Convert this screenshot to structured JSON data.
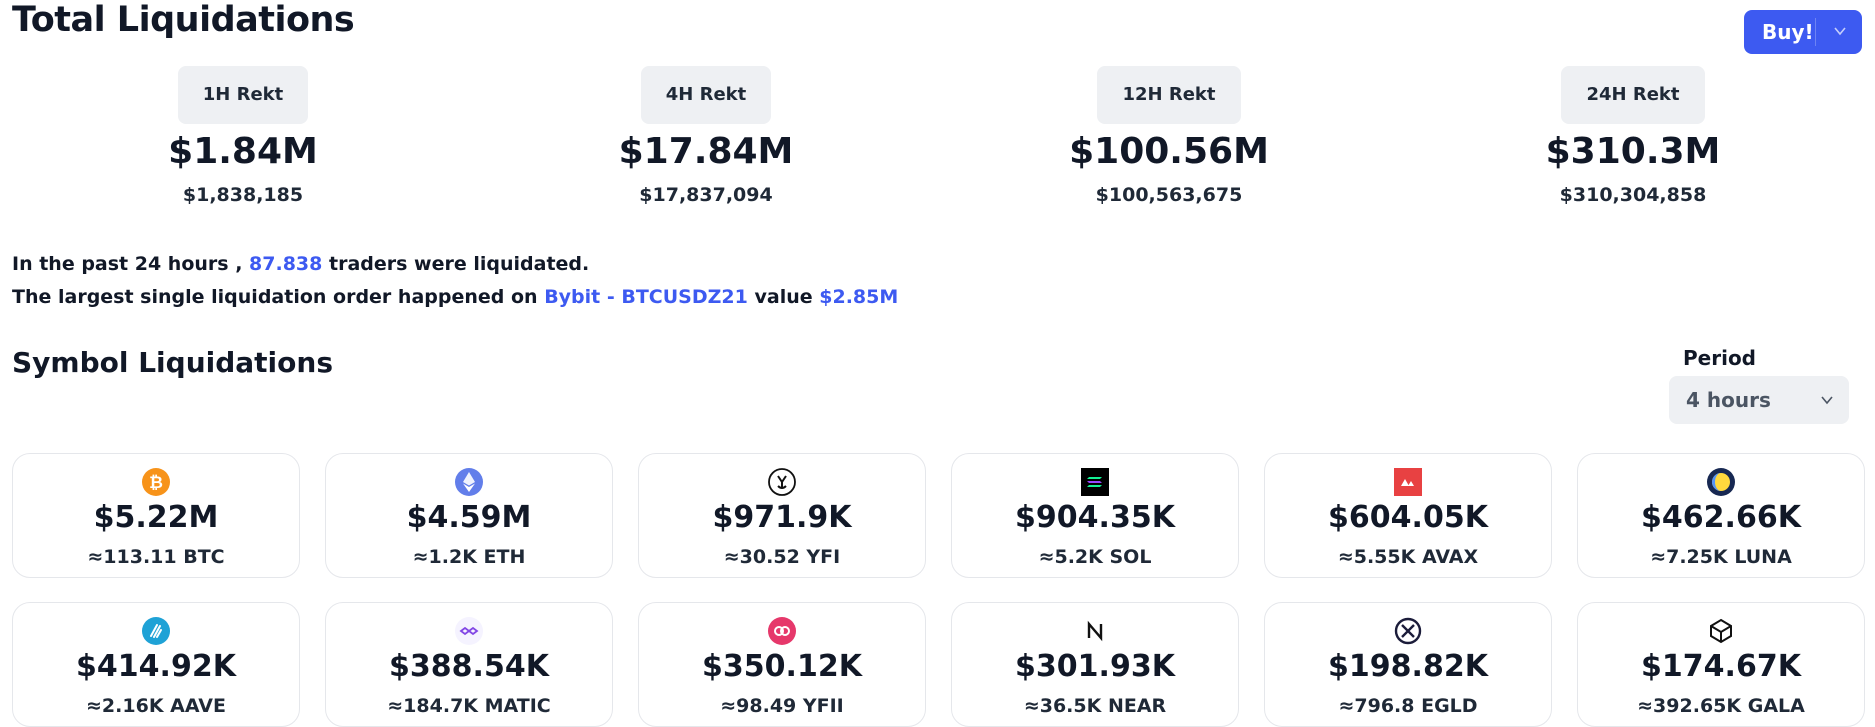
{
  "header": {
    "title": "Total Liquidations",
    "buy_label": "Buy!"
  },
  "rekt": [
    {
      "tab": "1H Rekt",
      "short": "$1.84M",
      "full": "$1,838,185"
    },
    {
      "tab": "4H Rekt",
      "short": "$17.84M",
      "full": "$17,837,094"
    },
    {
      "tab": "12H Rekt",
      "short": "$100.56M",
      "full": "$100,563,675"
    },
    {
      "tab": "24H Rekt",
      "short": "$310.3M",
      "full": "$310,304,858"
    }
  ],
  "summary": {
    "line1_prefix": "In the past 24 hours ,",
    "traders_count": "87.838",
    "line1_suffix": "traders were liquidated.",
    "line2_prefix": "The largest single liquidation order happened on",
    "exchange_pair": "Bybit - BTCUSDZ21",
    "line2_mid": "value",
    "value": "$2.85M"
  },
  "symbols": {
    "title": "Symbol Liquidations",
    "period_label": "Period",
    "period_value": "4 hours",
    "cards": [
      {
        "icon": "bitcoin-icon",
        "value": "$5.22M",
        "amount": "≈113.11 BTC",
        "color": "#f7931a"
      },
      {
        "icon": "ethereum-icon",
        "value": "$4.59M",
        "amount": "≈1.2K ETH",
        "color": "#627eea"
      },
      {
        "icon": "yfi-icon",
        "value": "$971.9K",
        "amount": "≈30.52 YFI",
        "color": "#111111"
      },
      {
        "icon": "solana-icon",
        "value": "$904.35K",
        "amount": "≈5.2K SOL",
        "color": "#000000"
      },
      {
        "icon": "avalanche-icon",
        "value": "$604.05K",
        "amount": "≈5.55K AVAX",
        "color": "#e84142"
      },
      {
        "icon": "luna-icon",
        "value": "$462.66K",
        "amount": "≈7.25K LUNA",
        "color": "#172852"
      },
      {
        "icon": "aave-icon",
        "value": "$414.92K",
        "amount": "≈2.16K AAVE",
        "color": "#1fa2d6"
      },
      {
        "icon": "polygon-icon",
        "value": "$388.54K",
        "amount": "≈184.7K MATIC",
        "color": "#8247e5"
      },
      {
        "icon": "yfii-icon",
        "value": "$350.12K",
        "amount": "≈98.49 YFII",
        "color": "#e6386b"
      },
      {
        "icon": "near-icon",
        "value": "$301.93K",
        "amount": "≈36.5K NEAR",
        "color": "#111111"
      },
      {
        "icon": "elrond-icon",
        "value": "$198.82K",
        "amount": "≈796.8 EGLD",
        "color": "#1b1c3a"
      },
      {
        "icon": "gala-icon",
        "value": "$174.67K",
        "amount": "≈392.65K GALA",
        "color": "#111111"
      }
    ]
  }
}
